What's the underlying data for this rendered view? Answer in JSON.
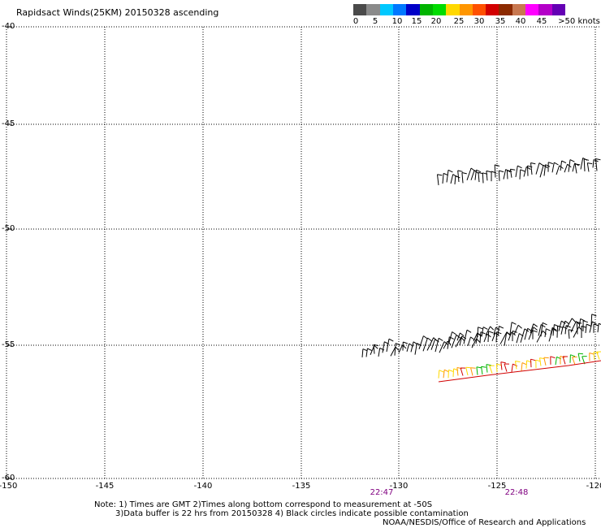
{
  "title": "Rapidsact Winds(25KM) 20150328 ascending",
  "colorbar": {
    "colors": [
      "#4a4a4a",
      "#8a8a8a",
      "#00c8ff",
      "#0078ff",
      "#0000c8",
      "#00b400",
      "#00dc00",
      "#ffd800",
      "#ff9600",
      "#ff5000",
      "#d20000",
      "#8c2a00",
      "#c87850",
      "#ff00ff",
      "#b400c8",
      "#6400b4"
    ],
    "labels": [
      {
        "text": "0"
      },
      {
        "text": "5"
      },
      {
        "text": "10"
      },
      {
        "text": "15"
      },
      {
        "text": "20"
      },
      {
        "text": "25"
      },
      {
        "text": "30"
      },
      {
        "text": "35"
      },
      {
        "text": "40"
      },
      {
        "text": "45"
      },
      {
        "text": ">50 knots"
      }
    ]
  },
  "lat_labels": [
    "-40",
    "-45",
    "-50",
    "-55",
    "-60"
  ],
  "lon_labels": [
    "-150",
    "-145",
    "-140",
    "-135",
    "-130",
    "-125",
    "-120"
  ],
  "time_labels": [
    "22:47",
    "22:48"
  ],
  "notes": {
    "line1": "Note: 1) Times are GMT 2)Times along bottom correspond to measurement at -50S",
    "line2": "3)Data buffer is 22 hrs from 20150328 4) Black circles indicate possible contamination",
    "line3": "NOAA/NESDIS/Office of Research and Applications"
  },
  "swath_colors": {
    "black": "#000000",
    "green": "#00b400",
    "yellow": "#ffd800",
    "orange": "#ff9600",
    "red": "#d20000"
  }
}
